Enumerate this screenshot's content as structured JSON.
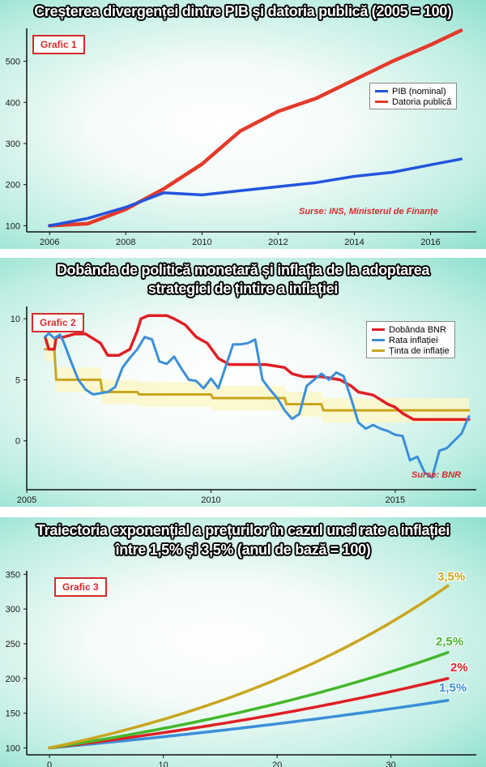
{
  "chart_data": [
    {
      "type": "line",
      "title": "Creșterea divergenței dintre PIB și datoria publică (2005 = 100)",
      "badge": "Grafic 1",
      "source": "Surse: INS, Ministerul de Finanțe",
      "xlim": [
        2005.4,
        2017.2
      ],
      "ylim": [
        85,
        580
      ],
      "xticks": [
        2006,
        2008,
        2010,
        2012,
        2014,
        2016
      ],
      "yticks": [
        100,
        200,
        300,
        400,
        500
      ],
      "legend_position": "top-right",
      "grid": false,
      "series": [
        {
          "name": "PIB (nominal)",
          "color": "#2255dd",
          "x": [
            2006,
            2007,
            2008,
            2009,
            2010,
            2011,
            2012,
            2013,
            2014,
            2015,
            2016,
            2016.8
          ],
          "y": [
            100,
            118,
            145,
            180,
            175,
            185,
            195,
            205,
            220,
            230,
            248,
            262
          ]
        },
        {
          "name": "Datoria publică",
          "color": "#e43a2a",
          "x": [
            2006,
            2007,
            2008,
            2009,
            2010,
            2011,
            2012,
            2013,
            2014,
            2015,
            2016,
            2016.8
          ],
          "y": [
            100,
            105,
            140,
            190,
            250,
            330,
            378,
            410,
            455,
            500,
            540,
            575
          ]
        }
      ]
    },
    {
      "type": "line",
      "title_lines": [
        "Dobânda de politică monetară și inflația de la adoptarea",
        "strategiei de țintire a inflației"
      ],
      "badge": "Grafic 2",
      "source": "Surse: BNR",
      "xlim": [
        2005,
        2017.2
      ],
      "ylim": [
        -4,
        11
      ],
      "xticks": [
        2005,
        2010,
        2015
      ],
      "yticks": [
        0,
        5,
        10
      ],
      "legend_position": "top-right",
      "grid": false,
      "series": [
        {
          "name": "Dobânda BNR",
          "color": "#e01e25",
          "x": [
            2005.5,
            2005.6,
            2005.75,
            2005.8,
            2006.0,
            2006.3,
            2006.6,
            2007.0,
            2007.2,
            2007.5,
            2007.8,
            2008.0,
            2008.1,
            2008.3,
            2008.8,
            2009.0,
            2009.3,
            2009.6,
            2009.9,
            2010.2,
            2010.5,
            2010.8,
            2011.5,
            2012.0,
            2012.2,
            2012.5,
            2013.0,
            2013.5,
            2013.8,
            2014.0,
            2014.4,
            2014.8,
            2015.0,
            2015.2,
            2015.5,
            2016.0,
            2016.5,
            2016.8,
            2017.0
          ],
          "y": [
            8.5,
            7.5,
            7.5,
            8.5,
            8.5,
            8.75,
            8.75,
            8.0,
            7.0,
            7.0,
            7.5,
            9.0,
            10.0,
            10.25,
            10.25,
            10.0,
            9.5,
            8.5,
            8.0,
            6.75,
            6.25,
            6.25,
            6.25,
            6.0,
            5.5,
            5.25,
            5.25,
            5.0,
            4.5,
            4.0,
            3.75,
            3.0,
            2.75,
            2.25,
            1.75,
            1.75,
            1.75,
            1.75,
            1.75
          ]
        },
        {
          "name": "Rata inflației",
          "color": "#3b8fd9",
          "x": [
            2005.5,
            2005.6,
            2005.75,
            2005.9,
            2006.0,
            2006.2,
            2006.4,
            2006.6,
            2006.8,
            2007.0,
            2007.2,
            2007.4,
            2007.6,
            2007.8,
            2008.0,
            2008.2,
            2008.4,
            2008.6,
            2008.8,
            2009.0,
            2009.2,
            2009.4,
            2009.6,
            2009.8,
            2010.0,
            2010.2,
            2010.4,
            2010.6,
            2010.8,
            2011.0,
            2011.2,
            2011.4,
            2011.6,
            2011.8,
            2012.0,
            2012.2,
            2012.4,
            2012.6,
            2012.8,
            2013.0,
            2013.2,
            2013.4,
            2013.6,
            2013.8,
            2014.0,
            2014.2,
            2014.4,
            2014.6,
            2014.8,
            2015.0,
            2015.2,
            2015.4,
            2015.6,
            2015.8,
            2016.0,
            2016.2,
            2016.4,
            2016.6,
            2016.8,
            2017.0
          ],
          "y": [
            8.5,
            8.8,
            8.4,
            8.7,
            8.1,
            6.5,
            5.0,
            4.2,
            3.8,
            3.9,
            4.0,
            4.4,
            6.0,
            6.8,
            7.5,
            8.5,
            8.3,
            6.5,
            6.3,
            6.9,
            5.9,
            5.0,
            4.9,
            4.3,
            5.1,
            4.3,
            6.1,
            7.9,
            7.9,
            8.0,
            8.3,
            5.0,
            4.2,
            3.5,
            2.5,
            1.8,
            2.2,
            4.5,
            5.0,
            5.5,
            5.0,
            5.6,
            5.3,
            3.5,
            1.5,
            1.0,
            1.3,
            1.0,
            0.8,
            0.5,
            0.4,
            -1.6,
            -1.3,
            -2.6,
            -3.0,
            -0.8,
            -0.6,
            0.0,
            0.6,
            2.0
          ]
        },
        {
          "name": "Ținta de inflație",
          "color": "#c9a61e",
          "x": [
            2005.5,
            2005.75,
            2005.8,
            2007.0,
            2007.05,
            2008.0,
            2008.05,
            2010.0,
            2010.05,
            2012.0,
            2012.05,
            2013.0,
            2013.05,
            2017.0
          ],
          "y": [
            7.5,
            7.5,
            5.0,
            5.0,
            4.0,
            4.0,
            3.8,
            3.8,
            3.5,
            3.5,
            3.0,
            3.0,
            2.5,
            2.5
          ],
          "band": 1.0
        }
      ]
    },
    {
      "type": "line",
      "title_lines": [
        "Traiectoria exponențial a prețurilor în cazul unei rate a inflației",
        "între 1,5% și 3,5% (anul de bază = 100)"
      ],
      "badge": "Grafic 3",
      "xlim": [
        -2,
        37.5
      ],
      "ylim": [
        90,
        355
      ],
      "xticks": [
        0,
        10,
        20,
        30
      ],
      "yticks": [
        100,
        150,
        200,
        250,
        300,
        350
      ],
      "grid": false,
      "series": [
        {
          "name": "3,5%",
          "rate": 3.5,
          "color": "#c9a61e"
        },
        {
          "name": "2,5%",
          "rate": 2.5,
          "color": "#44b82b"
        },
        {
          "name": "2%",
          "rate": 2.0,
          "color": "#e01e25"
        },
        {
          "name": "1,5%",
          "rate": 1.5,
          "color": "#3b8fd9"
        }
      ],
      "x_end": 35
    }
  ]
}
